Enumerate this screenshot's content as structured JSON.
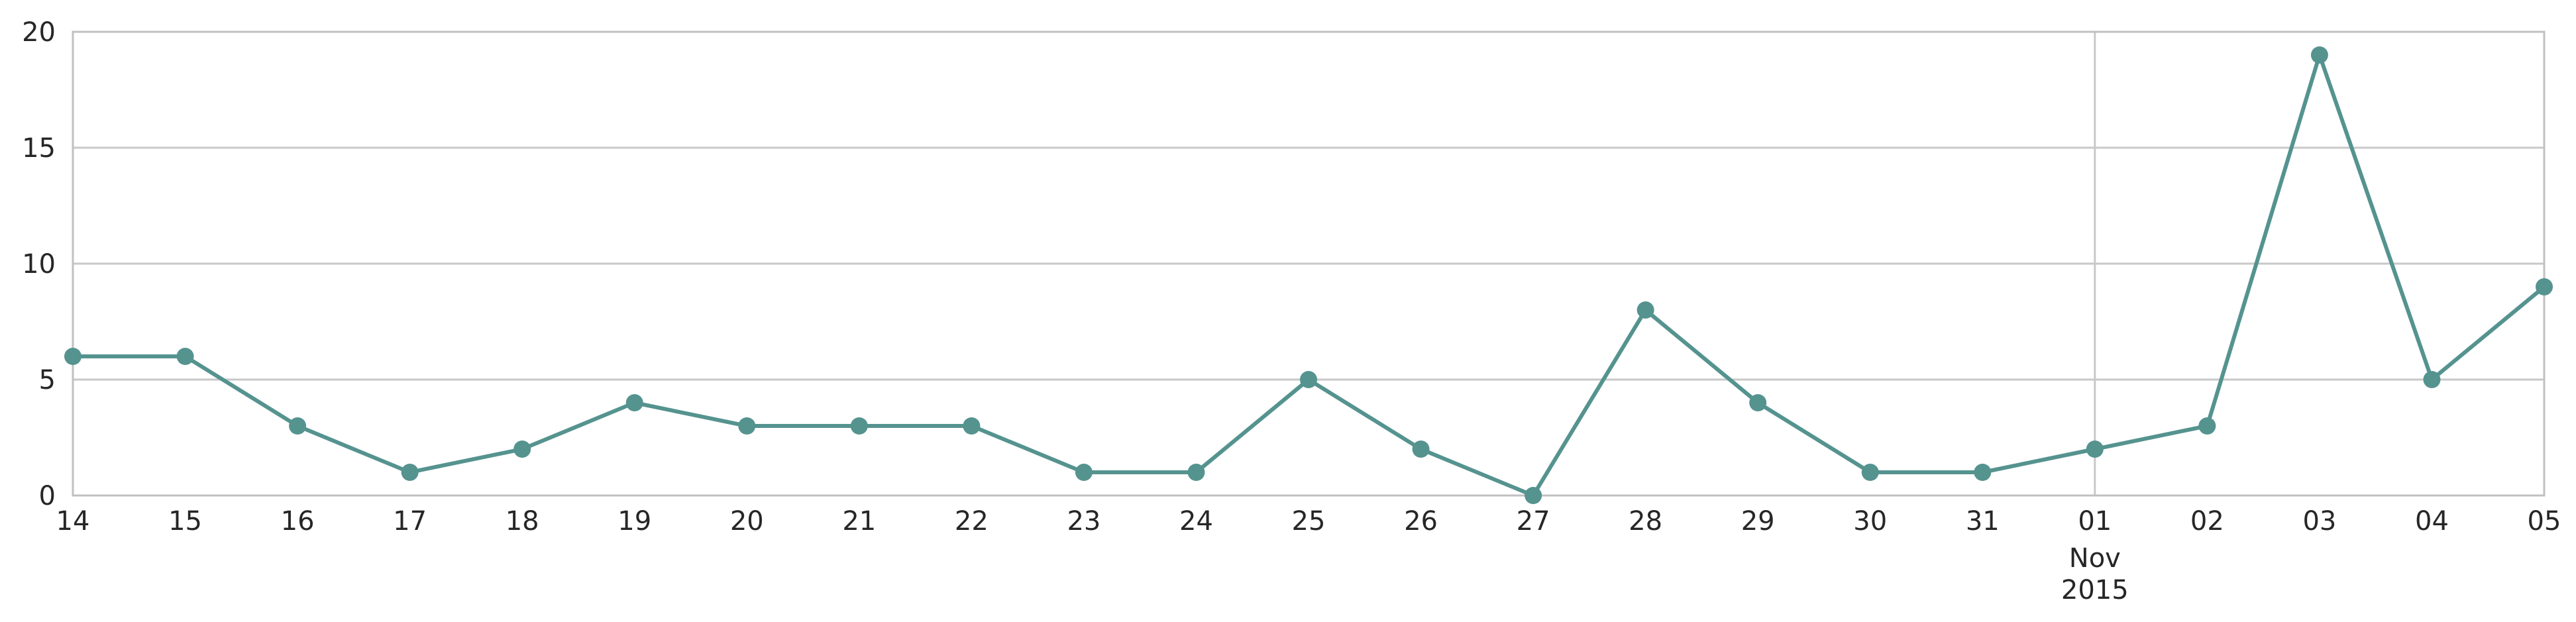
{
  "chart_data": {
    "type": "line",
    "title": "",
    "xlabel": "",
    "ylabel": "",
    "x": [
      "2015-10-14",
      "2015-10-15",
      "2015-10-16",
      "2015-10-17",
      "2015-10-18",
      "2015-10-19",
      "2015-10-20",
      "2015-10-21",
      "2015-10-22",
      "2015-10-23",
      "2015-10-24",
      "2015-10-25",
      "2015-10-26",
      "2015-10-27",
      "2015-10-28",
      "2015-10-29",
      "2015-10-30",
      "2015-10-31",
      "2015-11-01",
      "2015-11-02",
      "2015-11-03",
      "2015-11-04",
      "2015-11-05"
    ],
    "x_tick_labels": [
      "14",
      "15",
      "16",
      "17",
      "18",
      "19",
      "20",
      "21",
      "22",
      "23",
      "24",
      "25",
      "26",
      "27",
      "28",
      "29",
      "30",
      "31",
      "01",
      "02",
      "03",
      "04",
      "05"
    ],
    "x_secondary_label": {
      "index": 18,
      "lines": [
        "Nov",
        "2015"
      ]
    },
    "series": [
      {
        "values": [
          6,
          6,
          3,
          1,
          2,
          4,
          3,
          3,
          3,
          1,
          1,
          5,
          2,
          0,
          8,
          4,
          1,
          1,
          2,
          3,
          19,
          5,
          9
        ]
      }
    ],
    "ylim": [
      0,
      20
    ],
    "y_ticks": [
      0,
      5,
      10,
      15,
      20
    ],
    "y_tick_labels": [
      "0",
      "5",
      "10",
      "15",
      "20"
    ],
    "grid": true,
    "vertical_grid_at_index": 18,
    "colors": {
      "series": "#55938f",
      "grid": "#c8c8c8",
      "frame": "#c0c0c0",
      "text": "#262626"
    }
  }
}
